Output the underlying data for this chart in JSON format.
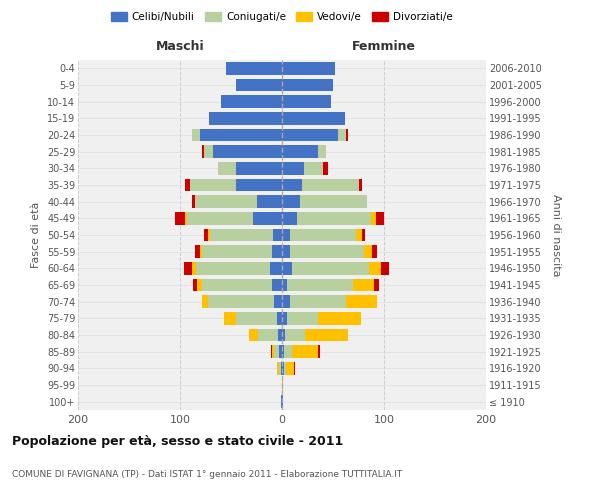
{
  "age_groups": [
    "100+",
    "95-99",
    "90-94",
    "85-89",
    "80-84",
    "75-79",
    "70-74",
    "65-69",
    "60-64",
    "55-59",
    "50-54",
    "45-49",
    "40-44",
    "35-39",
    "30-34",
    "25-29",
    "20-24",
    "15-19",
    "10-14",
    "5-9",
    "0-4"
  ],
  "birth_years": [
    "≤ 1910",
    "1911-1915",
    "1916-1920",
    "1921-1925",
    "1926-1930",
    "1931-1935",
    "1936-1940",
    "1941-1945",
    "1946-1950",
    "1951-1955",
    "1956-1960",
    "1961-1965",
    "1966-1970",
    "1971-1975",
    "1976-1980",
    "1981-1985",
    "1986-1990",
    "1991-1995",
    "1996-2000",
    "2001-2005",
    "2006-2010"
  ],
  "maschi": {
    "celibi": [
      1,
      0,
      1,
      3,
      4,
      5,
      8,
      10,
      12,
      10,
      9,
      28,
      25,
      45,
      45,
      68,
      80,
      72,
      60,
      45,
      55
    ],
    "coniugati": [
      0,
      0,
      2,
      5,
      20,
      40,
      65,
      68,
      72,
      68,
      62,
      65,
      60,
      45,
      18,
      8,
      8,
      0,
      0,
      0,
      0
    ],
    "vedovi": [
      0,
      0,
      2,
      2,
      8,
      12,
      5,
      5,
      4,
      2,
      2,
      2,
      0,
      0,
      0,
      0,
      0,
      0,
      0,
      0,
      0
    ],
    "divorziati": [
      0,
      0,
      0,
      1,
      0,
      0,
      0,
      4,
      8,
      5,
      3,
      10,
      3,
      5,
      0,
      2,
      0,
      0,
      0,
      0,
      0
    ]
  },
  "femmine": {
    "nubili": [
      1,
      0,
      2,
      2,
      3,
      5,
      8,
      5,
      10,
      8,
      8,
      15,
      18,
      20,
      22,
      35,
      55,
      62,
      48,
      50,
      52
    ],
    "coniugate": [
      0,
      0,
      2,
      8,
      20,
      30,
      55,
      65,
      75,
      72,
      65,
      72,
      65,
      55,
      18,
      8,
      8,
      0,
      0,
      0,
      0
    ],
    "vedove": [
      0,
      1,
      8,
      25,
      42,
      42,
      30,
      20,
      12,
      8,
      5,
      5,
      0,
      0,
      0,
      0,
      0,
      0,
      0,
      0,
      0
    ],
    "divorziate": [
      0,
      0,
      1,
      2,
      0,
      0,
      0,
      5,
      8,
      5,
      3,
      8,
      0,
      3,
      5,
      0,
      2,
      0,
      0,
      0,
      0
    ]
  },
  "colors": {
    "celibi_nubili": "#4472c4",
    "coniugati": "#b8cfa0",
    "vedovi": "#ffc000",
    "divorziati": "#cc0000"
  },
  "xlim": 200,
  "title": "Popolazione per età, sesso e stato civile - 2011",
  "subtitle": "COMUNE DI FAVIGNANA (TP) - Dati ISTAT 1° gennaio 2011 - Elaborazione TUTTITALIA.IT",
  "ylabel_left": "Fasce di età",
  "ylabel_right": "Anni di nascita",
  "xlabel_maschi": "Maschi",
  "xlabel_femmine": "Femmine",
  "legend_labels": [
    "Celibi/Nubili",
    "Coniugati/e",
    "Vedovi/e",
    "Divorziati/e"
  ],
  "background_color": "#ffffff",
  "plot_bg_color": "#f0f0f0"
}
